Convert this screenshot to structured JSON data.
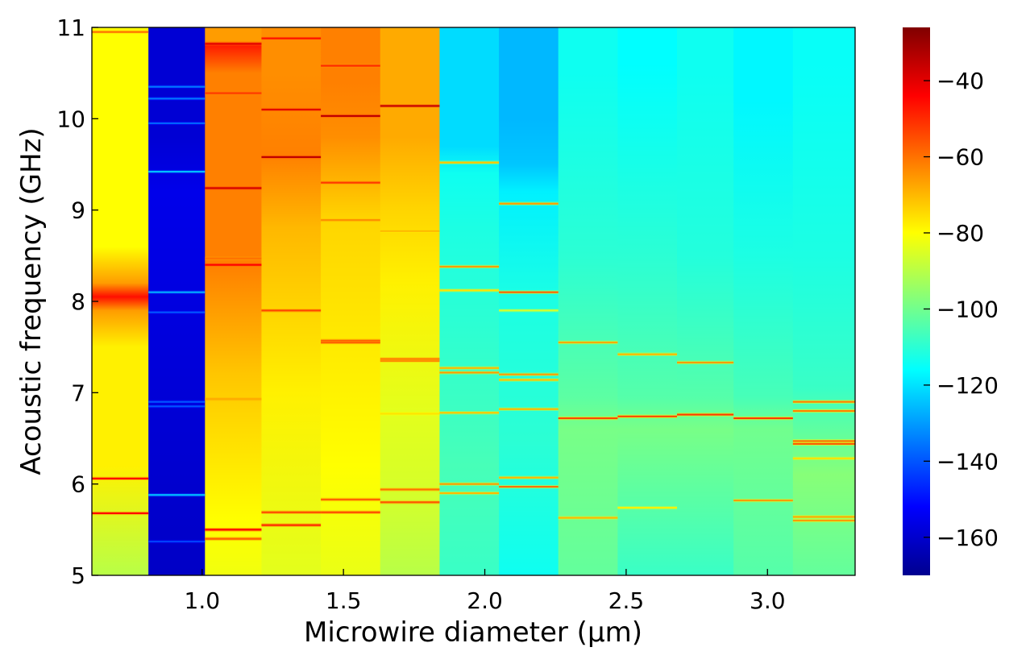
{
  "chart_data": {
    "type": "heatmap",
    "title": "",
    "xlabel": "Microwire diameter (µm)",
    "ylabel": "Acoustic frequency (GHz)",
    "xlim": [
      0.61,
      3.31
    ],
    "ylim": [
      5,
      11
    ],
    "xticks": [
      1.0,
      1.5,
      2.0,
      2.5,
      3.0
    ],
    "xtick_labels": [
      "1.0",
      "1.5",
      "2.0",
      "2.5",
      "3.0"
    ],
    "yticks": [
      5,
      6,
      7,
      8,
      9,
      10,
      11
    ],
    "ytick_labels": [
      "5",
      "6",
      "7",
      "8",
      "9",
      "10",
      "11"
    ],
    "colormap": "jet",
    "colorbar": {
      "vmin": -170,
      "vmax": -26,
      "ticks": [
        -40,
        -60,
        -80,
        -100,
        -120,
        -140,
        -160
      ],
      "tick_labels": [
        "−40",
        "−60",
        "−80",
        "−100",
        "−120",
        "−140",
        "−160"
      ]
    },
    "columns": [
      {
        "x0": 0.61,
        "x1": 0.81,
        "base": -88,
        "segments": [
          [
            5.0,
            -90
          ],
          [
            8.6,
            -80
          ],
          [
            8.2,
            -66
          ],
          [
            8.05,
            -46
          ],
          [
            7.9,
            -66
          ],
          [
            7.5,
            -78
          ],
          [
            6.2,
            -78
          ]
        ],
        "peaks": [
          [
            5.68,
            -45
          ],
          [
            6.06,
            -44
          ],
          [
            10.95,
            -60
          ]
        ]
      },
      {
        "x0": 0.81,
        "x1": 1.01,
        "base": -165,
        "segments": [
          [
            5.0,
            -160
          ],
          [
            9.2,
            -155
          ],
          [
            9.8,
            -158
          ]
        ],
        "peaks": [
          [
            5.37,
            -143
          ],
          [
            5.88,
            -125
          ],
          [
            6.85,
            -140
          ],
          [
            6.9,
            -140
          ],
          [
            7.88,
            -140
          ],
          [
            8.1,
            -128
          ],
          [
            9.42,
            -125
          ],
          [
            9.95,
            -138
          ],
          [
            10.22,
            -135
          ],
          [
            10.35,
            -135
          ]
        ]
      },
      {
        "x0": 1.01,
        "x1": 1.21,
        "base": -72,
        "segments": [
          [
            5.0,
            -82
          ],
          [
            5.6,
            -80
          ],
          [
            7.2,
            -72
          ],
          [
            8.4,
            -62
          ],
          [
            9.5,
            -62
          ],
          [
            10.5,
            -62
          ],
          [
            10.8,
            -48
          ],
          [
            10.85,
            -66
          ]
        ],
        "peaks": [
          [
            5.4,
            -58
          ],
          [
            5.5,
            -45
          ],
          [
            6.93,
            -68
          ],
          [
            8.4,
            -44
          ],
          [
            8.47,
            -60
          ],
          [
            9.24,
            -38
          ],
          [
            10.28,
            -52
          ],
          [
            10.82,
            -40
          ]
        ]
      },
      {
        "x0": 1.21,
        "x1": 1.42,
        "base": -78,
        "segments": [
          [
            5.0,
            -84
          ],
          [
            7.0,
            -78
          ],
          [
            8.8,
            -70
          ],
          [
            9.6,
            -62
          ],
          [
            10.5,
            -64
          ]
        ],
        "peaks": [
          [
            5.55,
            -50
          ],
          [
            5.69,
            -55
          ],
          [
            7.9,
            -54
          ],
          [
            9.58,
            -35
          ],
          [
            10.1,
            -40
          ],
          [
            10.88,
            -46
          ]
        ]
      },
      {
        "x0": 1.42,
        "x1": 1.63,
        "base": -78,
        "segments": [
          [
            5.0,
            -83
          ],
          [
            6.2,
            -80
          ],
          [
            8.9,
            -74
          ],
          [
            9.8,
            -64
          ],
          [
            10.4,
            -62
          ]
        ],
        "peaks": [
          [
            5.69,
            -55
          ],
          [
            5.83,
            -58
          ],
          [
            7.55,
            -55
          ],
          [
            7.57,
            -58
          ],
          [
            8.89,
            -64
          ],
          [
            9.3,
            -52
          ],
          [
            10.03,
            -35
          ],
          [
            10.58,
            -50
          ]
        ]
      },
      {
        "x0": 1.63,
        "x1": 1.84,
        "base": -84,
        "segments": [
          [
            5.0,
            -90
          ],
          [
            5.9,
            -86
          ],
          [
            6.8,
            -84
          ],
          [
            8.2,
            -78
          ],
          [
            9.0,
            -74
          ],
          [
            9.8,
            -68
          ]
        ],
        "peaks": [
          [
            5.8,
            -56
          ],
          [
            5.94,
            -60
          ],
          [
            6.77,
            -76
          ],
          [
            7.35,
            -60
          ],
          [
            7.37,
            -62
          ],
          [
            8.77,
            -70
          ],
          [
            10.14,
            -36
          ]
        ]
      },
      {
        "x0": 1.84,
        "x1": 2.05,
        "base": -110,
        "segments": [
          [
            5.0,
            -108
          ],
          [
            6.2,
            -106
          ],
          [
            7.8,
            -110
          ],
          [
            8.8,
            -112
          ],
          [
            9.4,
            -114
          ],
          [
            9.7,
            -121
          ]
        ],
        "peaks": [
          [
            5.9,
            -70
          ],
          [
            6.0,
            -66
          ],
          [
            6.78,
            -72
          ],
          [
            7.22,
            -66
          ],
          [
            7.27,
            -70
          ],
          [
            8.12,
            -76
          ],
          [
            8.38,
            -66
          ],
          [
            9.52,
            -72
          ]
        ]
      },
      {
        "x0": 2.05,
        "x1": 2.26,
        "base": -113,
        "segments": [
          [
            5.0,
            -114
          ],
          [
            6.5,
            -110
          ],
          [
            8.0,
            -112
          ],
          [
            9.2,
            -118
          ],
          [
            9.5,
            -124
          ],
          [
            10.0,
            -126
          ]
        ],
        "peaks": [
          [
            5.97,
            -60
          ],
          [
            6.07,
            -70
          ],
          [
            6.82,
            -70
          ],
          [
            7.14,
            -72
          ],
          [
            7.2,
            -66
          ],
          [
            7.9,
            -86
          ],
          [
            8.1,
            -58
          ],
          [
            9.07,
            -66
          ]
        ]
      },
      {
        "x0": 2.26,
        "x1": 2.47,
        "base": -104,
        "segments": [
          [
            5.0,
            -102
          ],
          [
            6.6,
            -99
          ],
          [
            6.95,
            -103
          ],
          [
            8.5,
            -110
          ],
          [
            10.5,
            -114
          ]
        ],
        "peaks": [
          [
            5.63,
            -70
          ],
          [
            6.72,
            -54
          ],
          [
            7.55,
            -68
          ]
        ]
      },
      {
        "x0": 2.47,
        "x1": 2.68,
        "base": -106,
        "segments": [
          [
            5.0,
            -108
          ],
          [
            6.6,
            -99
          ],
          [
            6.95,
            -104
          ],
          [
            8.5,
            -110
          ],
          [
            10.6,
            -116
          ]
        ],
        "peaks": [
          [
            5.74,
            -78
          ],
          [
            6.74,
            -54
          ],
          [
            7.42,
            -70
          ]
        ]
      },
      {
        "x0": 2.68,
        "x1": 2.88,
        "base": -106,
        "segments": [
          [
            5.0,
            -108
          ],
          [
            6.6,
            -99
          ],
          [
            6.95,
            -104
          ],
          [
            8.5,
            -111
          ],
          [
            10.5,
            -114
          ]
        ],
        "peaks": [
          [
            6.76,
            -52
          ],
          [
            7.33,
            -66
          ]
        ]
      },
      {
        "x0": 2.88,
        "x1": 3.09,
        "base": -106,
        "segments": [
          [
            5.0,
            -104
          ],
          [
            6.6,
            -100
          ],
          [
            6.95,
            -106
          ],
          [
            8.5,
            -112
          ],
          [
            10.2,
            -117
          ]
        ],
        "peaks": [
          [
            5.82,
            -66
          ],
          [
            6.72,
            -52
          ]
        ]
      },
      {
        "x0": 3.09,
        "x1": 3.31,
        "base": -100,
        "segments": [
          [
            5.0,
            -102
          ],
          [
            6.1,
            -97
          ],
          [
            7.05,
            -108
          ],
          [
            8.5,
            -112
          ],
          [
            10.6,
            -115
          ]
        ],
        "peaks": [
          [
            5.6,
            -66
          ],
          [
            5.64,
            -68
          ],
          [
            6.28,
            -76
          ],
          [
            6.44,
            -56
          ],
          [
            6.47,
            -60
          ],
          [
            6.8,
            -62
          ],
          [
            6.9,
            -62
          ]
        ]
      }
    ]
  }
}
